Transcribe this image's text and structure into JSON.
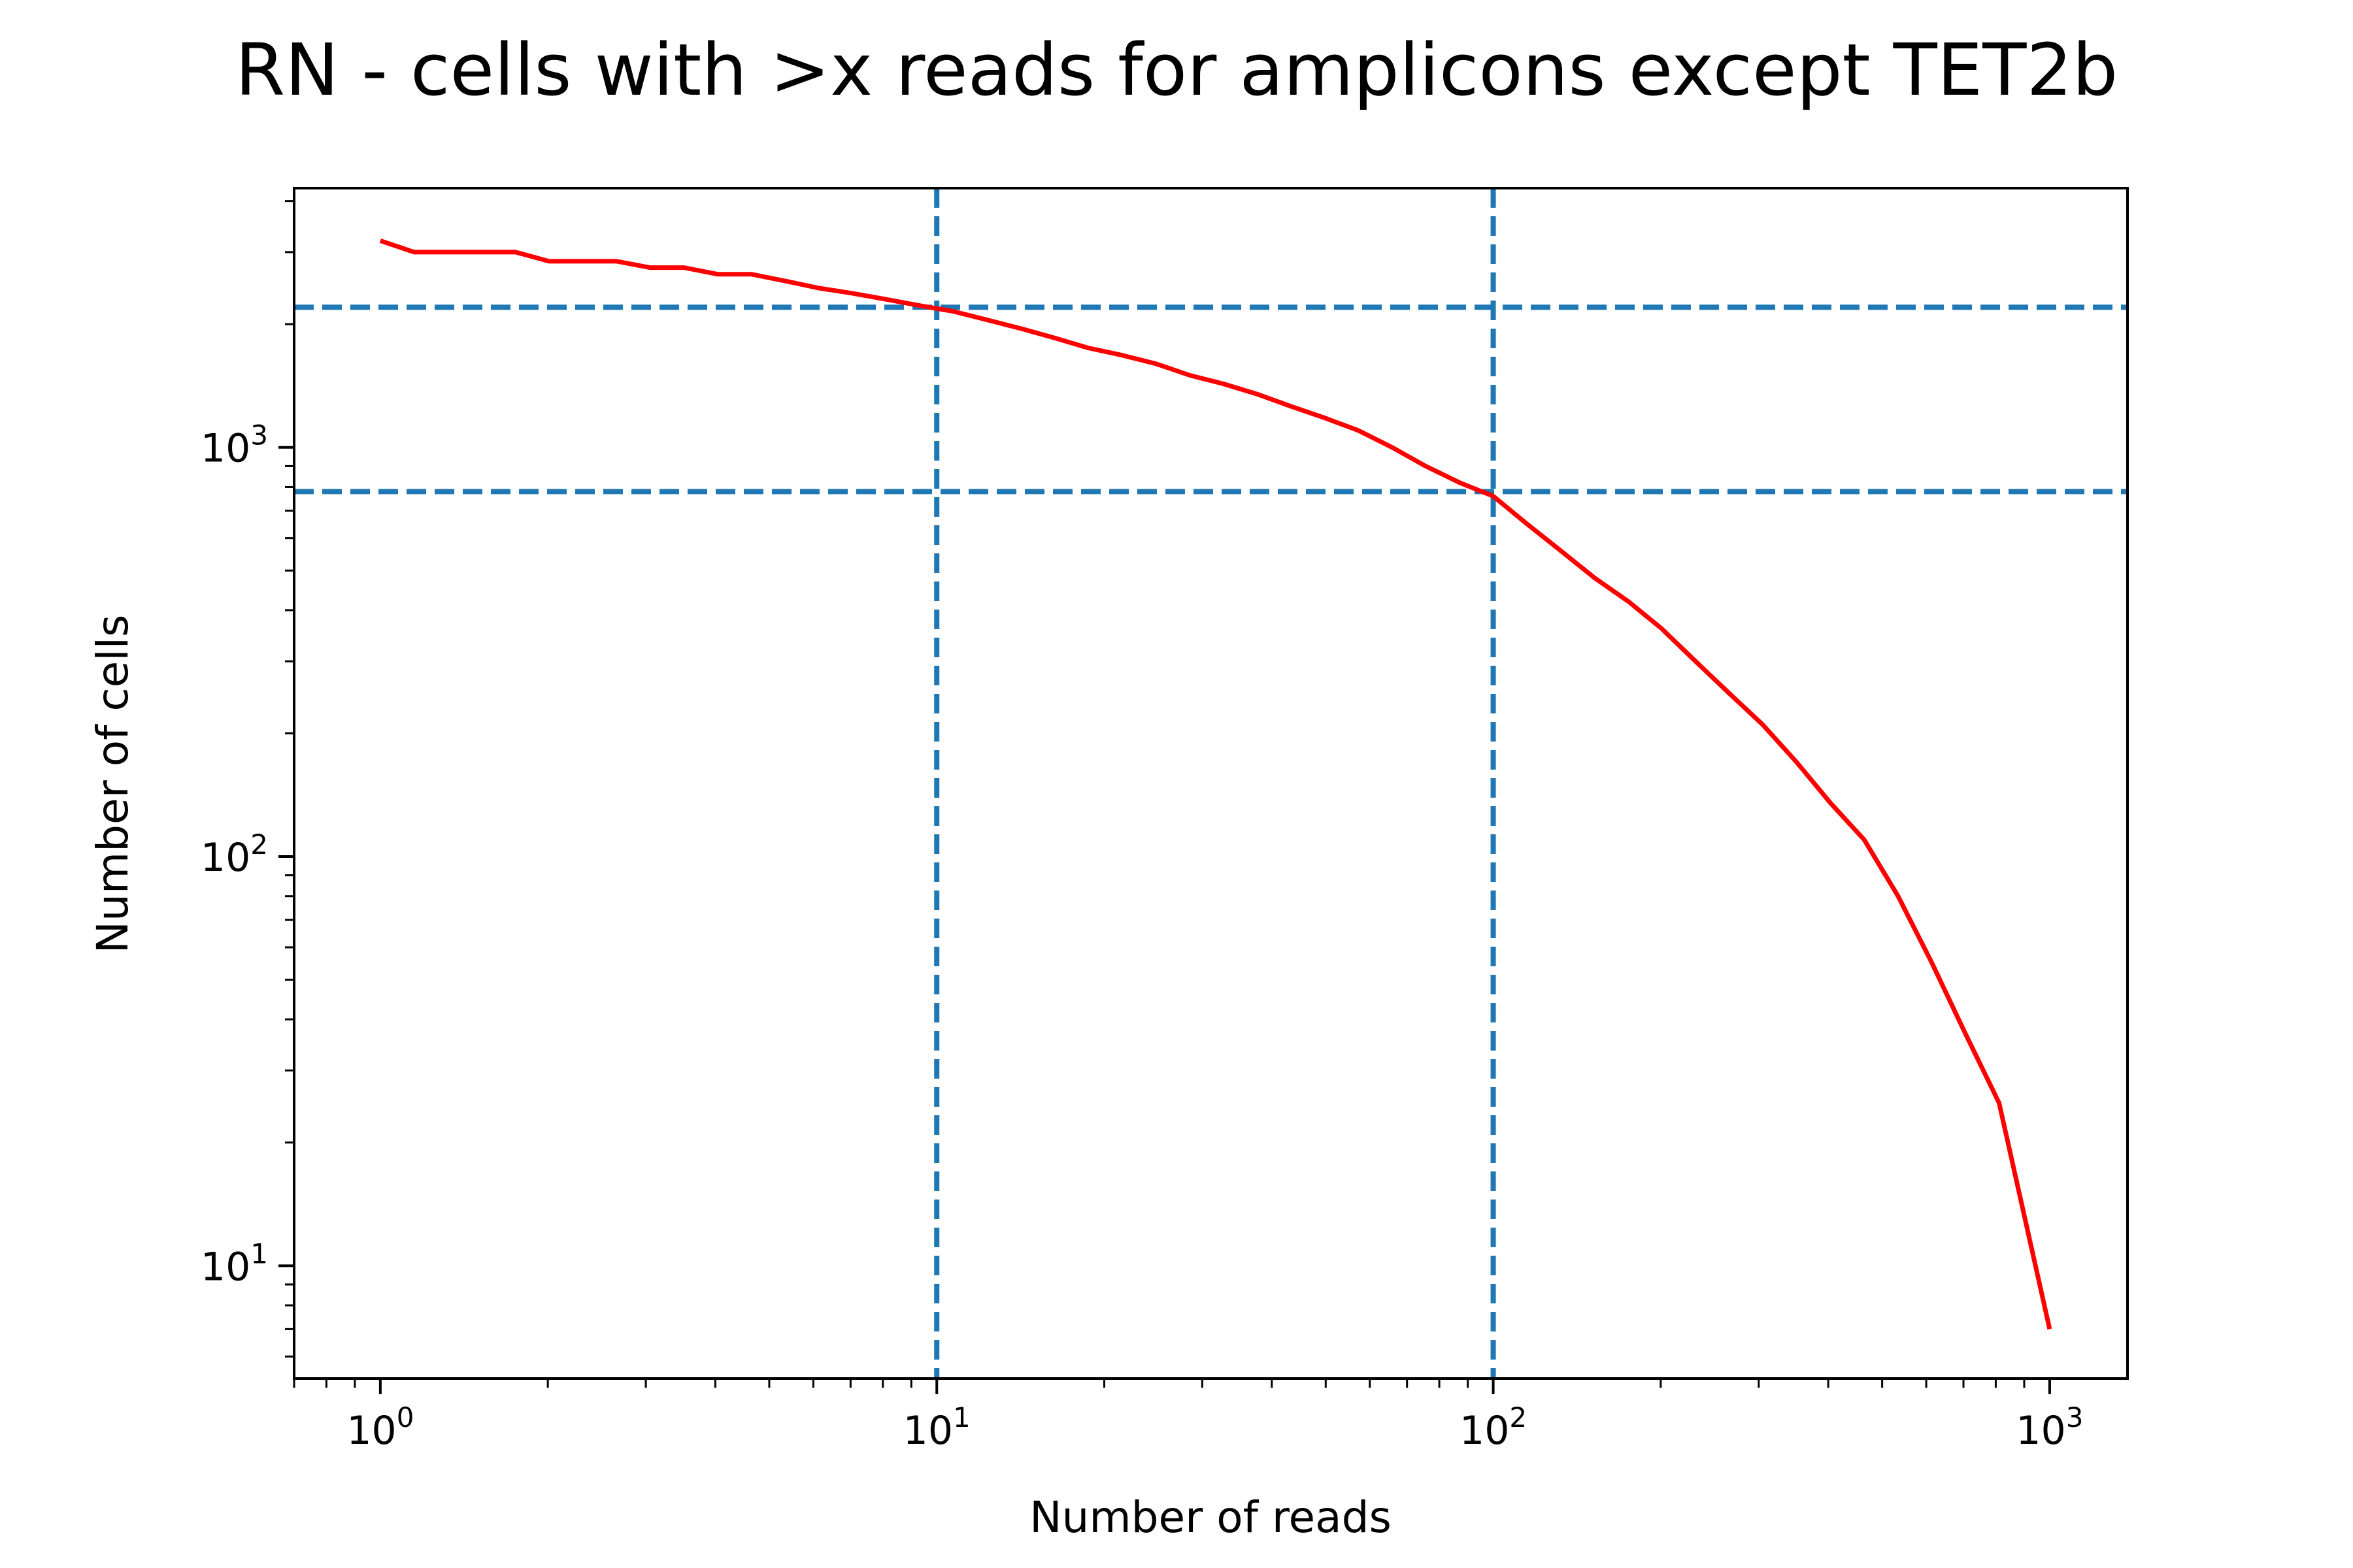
{
  "chart_data": {
    "type": "line",
    "title": "RN - cells with >x reads for amplicons except TET2b",
    "xlabel": "Number of reads",
    "ylabel": "Number of cells",
    "xscale": "log",
    "yscale": "log",
    "xlim": [
      0.7,
      1380
    ],
    "ylim": [
      5.3,
      4300
    ],
    "grid": false,
    "xticks": [
      {
        "value": 1,
        "base": "10",
        "exp": "0"
      },
      {
        "value": 10,
        "base": "10",
        "exp": "1"
      },
      {
        "value": 100,
        "base": "10",
        "exp": "2"
      },
      {
        "value": 1000,
        "base": "10",
        "exp": "3"
      }
    ],
    "yticks": [
      {
        "value": 10,
        "base": "10",
        "exp": "1"
      },
      {
        "value": 100,
        "base": "10",
        "exp": "2"
      },
      {
        "value": 1000,
        "base": "10",
        "exp": "3"
      }
    ],
    "series": [
      {
        "color": "#ff0000",
        "x": [
          1,
          1.15,
          1.32,
          1.52,
          1.75,
          2.01,
          2.31,
          2.66,
          3.05,
          3.51,
          4.04,
          4.64,
          5.34,
          6.14,
          7.05,
          8.11,
          9.33,
          10.7,
          12.3,
          14.2,
          16.3,
          18.7,
          21.5,
          24.8,
          28.5,
          32.7,
          37.6,
          43.3,
          49.8,
          57.2,
          65.8,
          75.6,
          87.0,
          100,
          115,
          132,
          152,
          175,
          201,
          231,
          266,
          305,
          351,
          404,
          464,
          534,
          614,
          705,
          811,
          1000
        ],
        "y": [
          3200,
          3000,
          3000,
          3000,
          3000,
          2850,
          2850,
          2850,
          2750,
          2750,
          2650,
          2650,
          2550,
          2450,
          2380,
          2300,
          2220,
          2150,
          2050,
          1950,
          1850,
          1750,
          1680,
          1600,
          1500,
          1430,
          1350,
          1260,
          1180,
          1100,
          1000,
          900,
          820,
          760,
          650,
          560,
          480,
          420,
          360,
          300,
          250,
          210,
          170,
          135,
          110,
          80,
          55,
          37,
          25,
          7
        ]
      }
    ],
    "hlines": [
      {
        "y": 2200,
        "color": "#1f77b4",
        "style": "dashed"
      },
      {
        "y": 780,
        "color": "#1f77b4",
        "style": "dashed"
      }
    ],
    "vlines": [
      {
        "x": 10,
        "color": "#1f77b4",
        "style": "dashed"
      },
      {
        "x": 100,
        "color": "#1f77b4",
        "style": "dashed"
      }
    ]
  }
}
